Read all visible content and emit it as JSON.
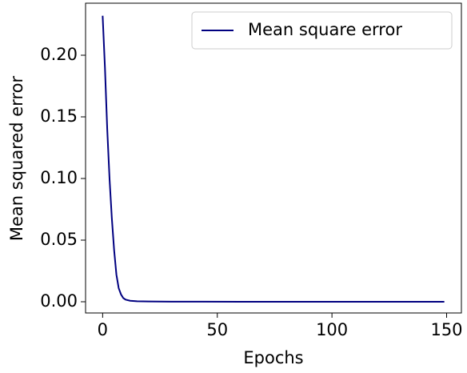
{
  "chart_data": {
    "type": "line",
    "x_label": "Epochs",
    "y_label": "Mean squared error",
    "x": [
      0,
      1,
      2,
      3,
      4,
      5,
      6,
      7,
      8,
      9,
      10,
      12,
      15,
      20,
      30,
      40,
      60,
      80,
      100,
      120,
      149
    ],
    "series": [
      {
        "name": "Mean square error",
        "color": "#000080",
        "values": [
          0.232,
          0.19,
          0.14,
          0.1,
          0.068,
          0.042,
          0.022,
          0.011,
          0.006,
          0.003,
          0.0017,
          0.0008,
          0.0004,
          0.0002,
          0.0001,
          5e-05,
          3e-05,
          2e-05,
          1e-05,
          1e-05,
          1e-05
        ]
      }
    ],
    "xlim": [
      -7.45,
      156.45
    ],
    "xticks": [
      0,
      50,
      100,
      150
    ],
    "ylim": [
      -0.0091,
      0.2422
    ],
    "yticks": [
      {
        "value": 0,
        "label": "0.00"
      },
      {
        "value": 0.05,
        "label": "0.05"
      },
      {
        "value": 0.1,
        "label": "0.10"
      },
      {
        "value": 0.15,
        "label": "0.15"
      },
      {
        "value": 0.2,
        "label": "0.20"
      }
    ],
    "legend": "upper right"
  }
}
